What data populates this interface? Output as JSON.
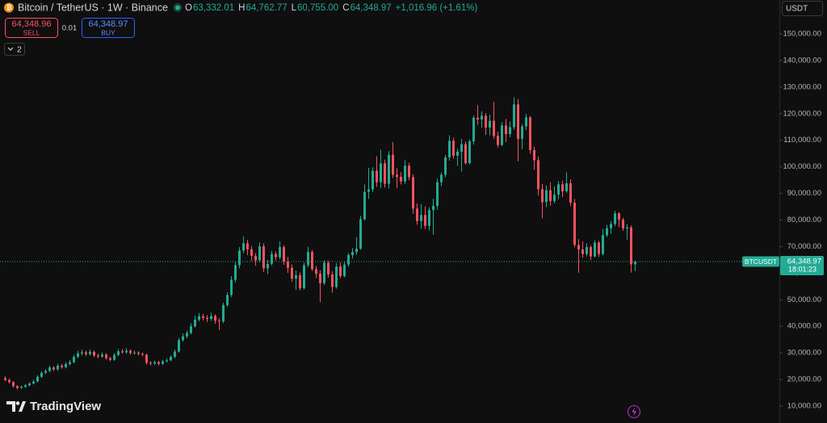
{
  "chart_data": {
    "type": "candlestick",
    "header": {
      "symbol": "Bitcoin / TetherUS · 1W · Binance",
      "ohlc_letters": [
        "O",
        "H",
        "L",
        "C"
      ],
      "ohlc_text": [
        "63,332.01",
        "64,762.77",
        "60,755.00",
        "64,348.97"
      ],
      "change": "+1,016.96 (+1.61%)"
    },
    "trade": {
      "sell_price": "64,348.96",
      "sell": "SELL",
      "spread": "0.01",
      "buy_price": "64,348.97",
      "buy": "BUY"
    },
    "indicators_count": "2",
    "currency": "USDT",
    "price_label": {
      "symbol": "BTCUSDT",
      "price": "64,348.97",
      "countdown": "18:01:23"
    },
    "brand": "TradingView",
    "up_color": "#22ab94",
    "down_color": "#f7525f",
    "ylim": [
      3620,
      162750
    ],
    "yticks": [
      {
        "value": 10000,
        "label": "10,000.00"
      },
      {
        "value": 20000,
        "label": "20,000.00"
      },
      {
        "value": 30000,
        "label": "30,000.00"
      },
      {
        "value": 40000,
        "label": "40,000.00"
      },
      {
        "value": 50000,
        "label": "50,000.00"
      },
      {
        "value": 60000,
        "label": "60,000.00"
      },
      {
        "value": 70000,
        "label": "70,000.00"
      },
      {
        "value": 80000,
        "label": "80,000.00"
      },
      {
        "value": 90000,
        "label": "90,000.00"
      },
      {
        "value": 100000,
        "label": "100,000.00"
      },
      {
        "value": 110000,
        "label": "110,000.00"
      },
      {
        "value": 120000,
        "label": "120,000.00"
      },
      {
        "value": 130000,
        "label": "130,000.00"
      },
      {
        "value": 140000,
        "label": "140,000.00"
      },
      {
        "value": 150000,
        "label": "150,000.00"
      }
    ],
    "ohlc": [
      [
        20500,
        21200,
        19300,
        19800
      ],
      [
        19800,
        20300,
        18500,
        19000
      ],
      [
        19000,
        19400,
        17000,
        17500
      ],
      [
        17500,
        17900,
        16200,
        16800
      ],
      [
        16800,
        17700,
        16500,
        17200
      ],
      [
        17200,
        18300,
        16900,
        17800
      ],
      [
        17800,
        19000,
        17400,
        18500
      ],
      [
        18500,
        19900,
        18100,
        19200
      ],
      [
        19200,
        21600,
        18900,
        21000
      ],
      [
        21000,
        23100,
        20600,
        22500
      ],
      [
        22500,
        23900,
        22000,
        23200
      ],
      [
        23200,
        25200,
        22700,
        24500
      ],
      [
        24500,
        25000,
        23100,
        23800
      ],
      [
        23800,
        25900,
        23300,
        25200
      ],
      [
        25200,
        25800,
        24000,
        24600
      ],
      [
        24600,
        26500,
        24100,
        25800
      ],
      [
        25800,
        27300,
        25200,
        26500
      ],
      [
        26500,
        29300,
        26000,
        28500
      ],
      [
        28500,
        30800,
        28000,
        29800
      ],
      [
        29800,
        31200,
        29100,
        30200
      ],
      [
        30200,
        30900,
        28800,
        29500
      ],
      [
        29500,
        31300,
        29000,
        30400
      ],
      [
        30400,
        30900,
        28400,
        29000
      ],
      [
        29000,
        29700,
        27900,
        28600
      ],
      [
        28600,
        30200,
        28100,
        29400
      ],
      [
        29400,
        29900,
        27400,
        28000
      ],
      [
        28000,
        28600,
        26800,
        27400
      ],
      [
        27400,
        29900,
        27000,
        29200
      ],
      [
        29200,
        31500,
        28800,
        30600
      ],
      [
        30600,
        31400,
        29700,
        30200
      ],
      [
        30200,
        31800,
        29700,
        30800
      ],
      [
        30800,
        31300,
        29300,
        29900
      ],
      [
        29900,
        30900,
        29400,
        30100
      ],
      [
        30100,
        30600,
        29000,
        29600
      ],
      [
        29600,
        30100,
        28700,
        29300
      ],
      [
        29300,
        29700,
        25600,
        26300
      ],
      [
        26300,
        26900,
        25300,
        26000
      ],
      [
        26000,
        27100,
        25500,
        26500
      ],
      [
        26500,
        27000,
        25200,
        25900
      ],
      [
        25900,
        27400,
        25400,
        26800
      ],
      [
        26800,
        27900,
        26400,
        27200
      ],
      [
        27200,
        29000,
        26800,
        28500
      ],
      [
        28500,
        31200,
        28000,
        30500
      ],
      [
        30500,
        35600,
        30100,
        34800
      ],
      [
        34800,
        37300,
        34200,
        36200
      ],
      [
        36200,
        38400,
        35500,
        37500
      ],
      [
        37500,
        41200,
        37000,
        40000
      ],
      [
        40000,
        44000,
        39500,
        42500
      ],
      [
        42500,
        45000,
        41800,
        43800
      ],
      [
        43800,
        44700,
        42200,
        43200
      ],
      [
        43200,
        44200,
        41600,
        42800
      ],
      [
        42800,
        45100,
        42000,
        43900
      ],
      [
        43900,
        44500,
        40900,
        42100
      ],
      [
        42100,
        43000,
        38600,
        41800
      ],
      [
        41800,
        48900,
        41200,
        48000
      ],
      [
        48000,
        52800,
        47300,
        51800
      ],
      [
        51800,
        58900,
        51000,
        57500
      ],
      [
        57500,
        64200,
        56500,
        63000
      ],
      [
        63000,
        69800,
        61800,
        68500
      ],
      [
        68500,
        73800,
        67500,
        71200
      ],
      [
        71200,
        72500,
        66800,
        69000
      ],
      [
        69000,
        70200,
        64600,
        66500
      ],
      [
        66500,
        67600,
        62800,
        64800
      ],
      [
        64800,
        71500,
        64000,
        70100
      ],
      [
        70100,
        71200,
        60400,
        61800
      ],
      [
        61800,
        65000,
        59600,
        63500
      ],
      [
        63500,
        68400,
        62900,
        67200
      ],
      [
        67200,
        68200,
        64800,
        66000
      ],
      [
        66000,
        71900,
        65200,
        69800
      ],
      [
        69800,
        70500,
        63100,
        64300
      ],
      [
        64300,
        66100,
        60100,
        62000
      ],
      [
        62000,
        63300,
        56800,
        57900
      ],
      [
        57900,
        61000,
        53700,
        59200
      ],
      [
        59200,
        60300,
        53500,
        54300
      ],
      [
        54300,
        63900,
        53800,
        63000
      ],
      [
        63000,
        69900,
        62200,
        68000
      ],
      [
        68000,
        68700,
        60800,
        61500
      ],
      [
        61500,
        62700,
        58100,
        59800
      ],
      [
        59800,
        61100,
        49100,
        56200
      ],
      [
        56200,
        64900,
        55500,
        63900
      ],
      [
        63900,
        64700,
        58300,
        59500
      ],
      [
        59500,
        60800,
        52600,
        54800
      ],
      [
        54800,
        63800,
        54200,
        62500
      ],
      [
        62500,
        64000,
        58100,
        58900
      ],
      [
        58900,
        64400,
        58400,
        63200
      ],
      [
        63200,
        67600,
        62400,
        66800
      ],
      [
        66800,
        69400,
        65500,
        67900
      ],
      [
        67900,
        73500,
        66900,
        69200
      ],
      [
        69200,
        81500,
        68800,
        80300
      ],
      [
        80300,
        93400,
        79800,
        90600
      ],
      [
        90600,
        99600,
        87900,
        91500
      ],
      [
        91500,
        99800,
        90500,
        98500
      ],
      [
        98500,
        104000,
        92500,
        94200
      ],
      [
        94200,
        106500,
        92000,
        101300
      ],
      [
        101300,
        102700,
        92200,
        93600
      ],
      [
        93600,
        105900,
        91800,
        104500
      ],
      [
        104500,
        109300,
        95800,
        97000
      ],
      [
        97000,
        99500,
        92000,
        96200
      ],
      [
        96200,
        98000,
        93400,
        94500
      ],
      [
        94500,
        102500,
        93600,
        100400
      ],
      [
        100400,
        101500,
        95000,
        96100
      ],
      [
        96100,
        97200,
        82300,
        84300
      ],
      [
        84300,
        86200,
        78200,
        79600
      ],
      [
        79600,
        86000,
        76700,
        81900
      ],
      [
        81900,
        85100,
        76600,
        77800
      ],
      [
        77800,
        84700,
        76000,
        83700
      ],
      [
        83700,
        88000,
        74500,
        85300
      ],
      [
        85300,
        95500,
        83900,
        94200
      ],
      [
        94200,
        97900,
        92800,
        97000
      ],
      [
        97000,
        104500,
        96000,
        103500
      ],
      [
        103500,
        111900,
        102300,
        109800
      ],
      [
        109800,
        111000,
        103000,
        104200
      ],
      [
        104200,
        106800,
        100400,
        105700
      ],
      [
        105700,
        110500,
        98200,
        108500
      ],
      [
        108500,
        109600,
        100800,
        101400
      ],
      [
        101400,
        110200,
        100900,
        109600
      ],
      [
        109600,
        119300,
        108300,
        118500
      ],
      [
        118500,
        123200,
        115800,
        117800
      ],
      [
        117800,
        120900,
        114700,
        119200
      ],
      [
        119200,
        120200,
        112000,
        114800
      ],
      [
        114800,
        119600,
        111900,
        117300
      ],
      [
        117300,
        124500,
        110600,
        111600
      ],
      [
        111600,
        113200,
        107300,
        108200
      ],
      [
        108200,
        116800,
        107800,
        115600
      ],
      [
        115600,
        118000,
        109300,
        112300
      ],
      [
        112300,
        117100,
        111100,
        114900
      ],
      [
        114900,
        126200,
        114000,
        123500
      ],
      [
        123500,
        125500,
        102000,
        110500
      ],
      [
        110500,
        116100,
        106600,
        115200
      ],
      [
        115200,
        120000,
        113800,
        118600
      ],
      [
        118600,
        119100,
        104900,
        106300
      ],
      [
        106300,
        107500,
        98900,
        102500
      ],
      [
        102500,
        103900,
        89200,
        91600
      ],
      [
        91600,
        93500,
        80600,
        86700
      ],
      [
        86700,
        93100,
        84800,
        91200
      ],
      [
        91200,
        94100,
        85300,
        87100
      ],
      [
        87100,
        92700,
        86300,
        89500
      ],
      [
        89500,
        94600,
        87800,
        93400
      ],
      [
        93400,
        94800,
        88600,
        90800
      ],
      [
        90800,
        97900,
        90200,
        93800
      ],
      [
        93800,
        95300,
        85200,
        86500
      ],
      [
        86500,
        87900,
        69800,
        70600
      ],
      [
        70600,
        72800,
        60100,
        68900
      ],
      [
        68900,
        71900,
        65800,
        67200
      ],
      [
        67200,
        71200,
        66300,
        69800
      ],
      [
        69800,
        70500,
        64900,
        66300
      ],
      [
        66300,
        72400,
        65900,
        71500
      ],
      [
        71500,
        72100,
        66100,
        67200
      ],
      [
        67200,
        76600,
        66700,
        74300
      ],
      [
        74300,
        78100,
        73500,
        76900
      ],
      [
        76900,
        79600,
        74800,
        78500
      ],
      [
        78500,
        83400,
        77600,
        82500
      ],
      [
        82500,
        82900,
        77300,
        80100
      ],
      [
        80100,
        80800,
        75900,
        76800
      ],
      [
        76800,
        78400,
        72600,
        77200
      ],
      [
        77200,
        77900,
        60200,
        63332.01
      ],
      [
        63332.01,
        64762.77,
        60755.0,
        64348.97
      ]
    ]
  }
}
